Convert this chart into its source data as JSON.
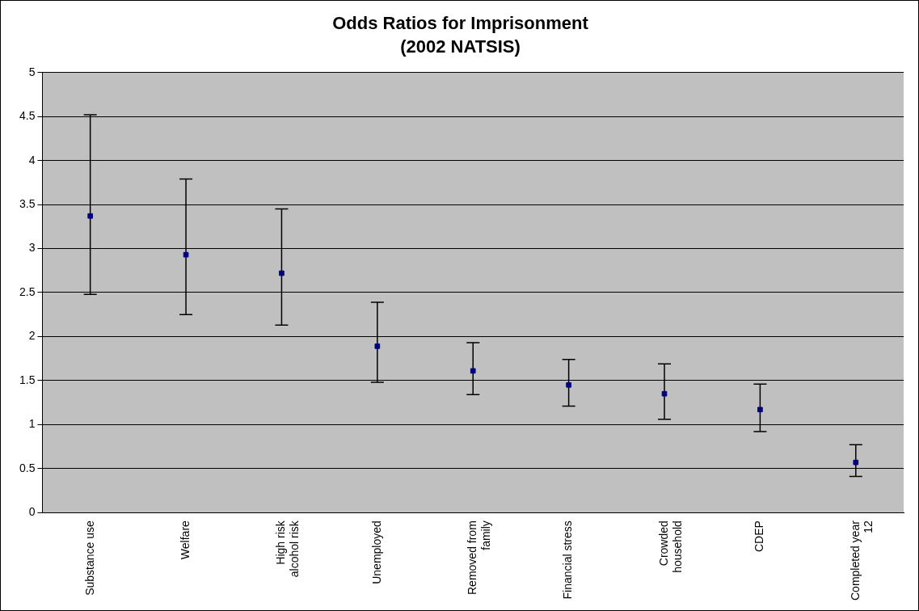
{
  "chart_data": {
    "type": "scatter",
    "title": "Odds Ratios for Imprisonment",
    "subtitle": "(2002 NATSIS)",
    "categories": [
      "Substance use",
      "Welfare",
      "High risk alcohol risk",
      "Unemployed",
      "Removed from family",
      "Financial stress",
      "Crowded household",
      "CDEP",
      "Completed year 12"
    ],
    "series": [
      {
        "color": "#000080",
        "values": [
          3.37,
          2.93,
          2.72,
          1.89,
          1.61,
          1.45,
          1.35,
          1.17,
          0.57
        ],
        "errors": [
          [
            2.48,
            4.52
          ],
          [
            2.25,
            3.79
          ],
          [
            2.13,
            3.45
          ],
          [
            1.48,
            2.39
          ],
          [
            1.34,
            1.93
          ],
          [
            1.21,
            1.74
          ],
          [
            1.06,
            1.69
          ],
          [
            0.92,
            1.46
          ],
          [
            0.41,
            0.77
          ]
        ]
      }
    ],
    "ylim": [
      0,
      5
    ],
    "yticks": [
      0,
      0.5,
      1,
      1.5,
      2,
      2.5,
      3,
      3.5,
      4,
      4.5,
      5
    ],
    "grid": "y",
    "legend": false
  }
}
